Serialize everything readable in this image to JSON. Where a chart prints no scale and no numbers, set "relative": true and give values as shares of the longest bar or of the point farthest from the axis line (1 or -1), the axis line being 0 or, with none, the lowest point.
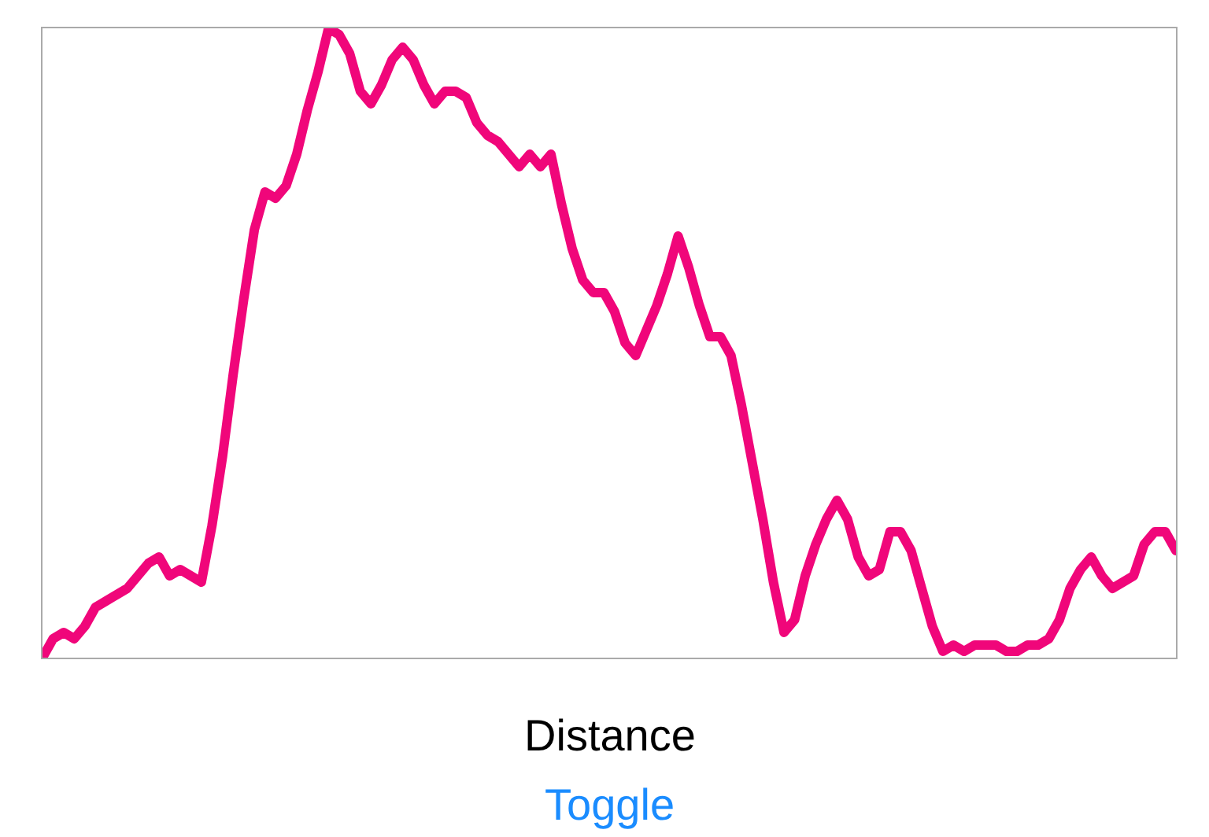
{
  "chart_data": {
    "type": "line",
    "relative": true,
    "xlabel": "Distance",
    "annotations": [
      "Toggle"
    ],
    "color": "#f0067a",
    "legend": false,
    "values": [
      0,
      0.03,
      0.04,
      0.03,
      0.05,
      0.08,
      0.09,
      0.1,
      0.11,
      0.13,
      0.15,
      0.16,
      0.13,
      0.14,
      0.13,
      0.12,
      0.21,
      0.32,
      0.45,
      0.57,
      0.68,
      0.74,
      0.73,
      0.75,
      0.8,
      0.87,
      0.93,
      1.0,
      0.99,
      0.96,
      0.9,
      0.88,
      0.91,
      0.95,
      0.97,
      0.95,
      0.91,
      0.88,
      0.9,
      0.9,
      0.89,
      0.85,
      0.83,
      0.82,
      0.8,
      0.78,
      0.8,
      0.78,
      0.8,
      0.72,
      0.65,
      0.6,
      0.58,
      0.58,
      0.55,
      0.5,
      0.48,
      0.52,
      0.56,
      0.61,
      0.67,
      0.62,
      0.56,
      0.51,
      0.51,
      0.48,
      0.4,
      0.31,
      0.22,
      0.12,
      0.04,
      0.06,
      0.13,
      0.18,
      0.22,
      0.25,
      0.22,
      0.16,
      0.13,
      0.14,
      0.2,
      0.2,
      0.17,
      0.11,
      0.05,
      0.01,
      0.02,
      0.01,
      0.02,
      0.02,
      0.02,
      0.01,
      0.01,
      0.02,
      0.02,
      0.03,
      0.06,
      0.11,
      0.14,
      0.16,
      0.13,
      0.11,
      0.12,
      0.13,
      0.18,
      0.2,
      0.2,
      0.17
    ],
    "categories": [
      null,
      null,
      null,
      null,
      null,
      null,
      null,
      null,
      null,
      null,
      null,
      null,
      null,
      null,
      null,
      null,
      null,
      null,
      null,
      null,
      null,
      null,
      null,
      null,
      null,
      null,
      null,
      null,
      null,
      null,
      null,
      null,
      null,
      null,
      null,
      null,
      null,
      null,
      null,
      null,
      null,
      null,
      null,
      null,
      null,
      null,
      null,
      null,
      null,
      null,
      null,
      null,
      null,
      null,
      null,
      null,
      null,
      null,
      null,
      null,
      null,
      null,
      null,
      null,
      null,
      null,
      null,
      null,
      null,
      null,
      null,
      null,
      null,
      null,
      null,
      null,
      null,
      null,
      null,
      null,
      null,
      null,
      null,
      null,
      null,
      null,
      null,
      null,
      null,
      null,
      null,
      null,
      null,
      null,
      null,
      null,
      null,
      null,
      null,
      null,
      null,
      null,
      null,
      null,
      null,
      null,
      null,
      null
    ]
  }
}
